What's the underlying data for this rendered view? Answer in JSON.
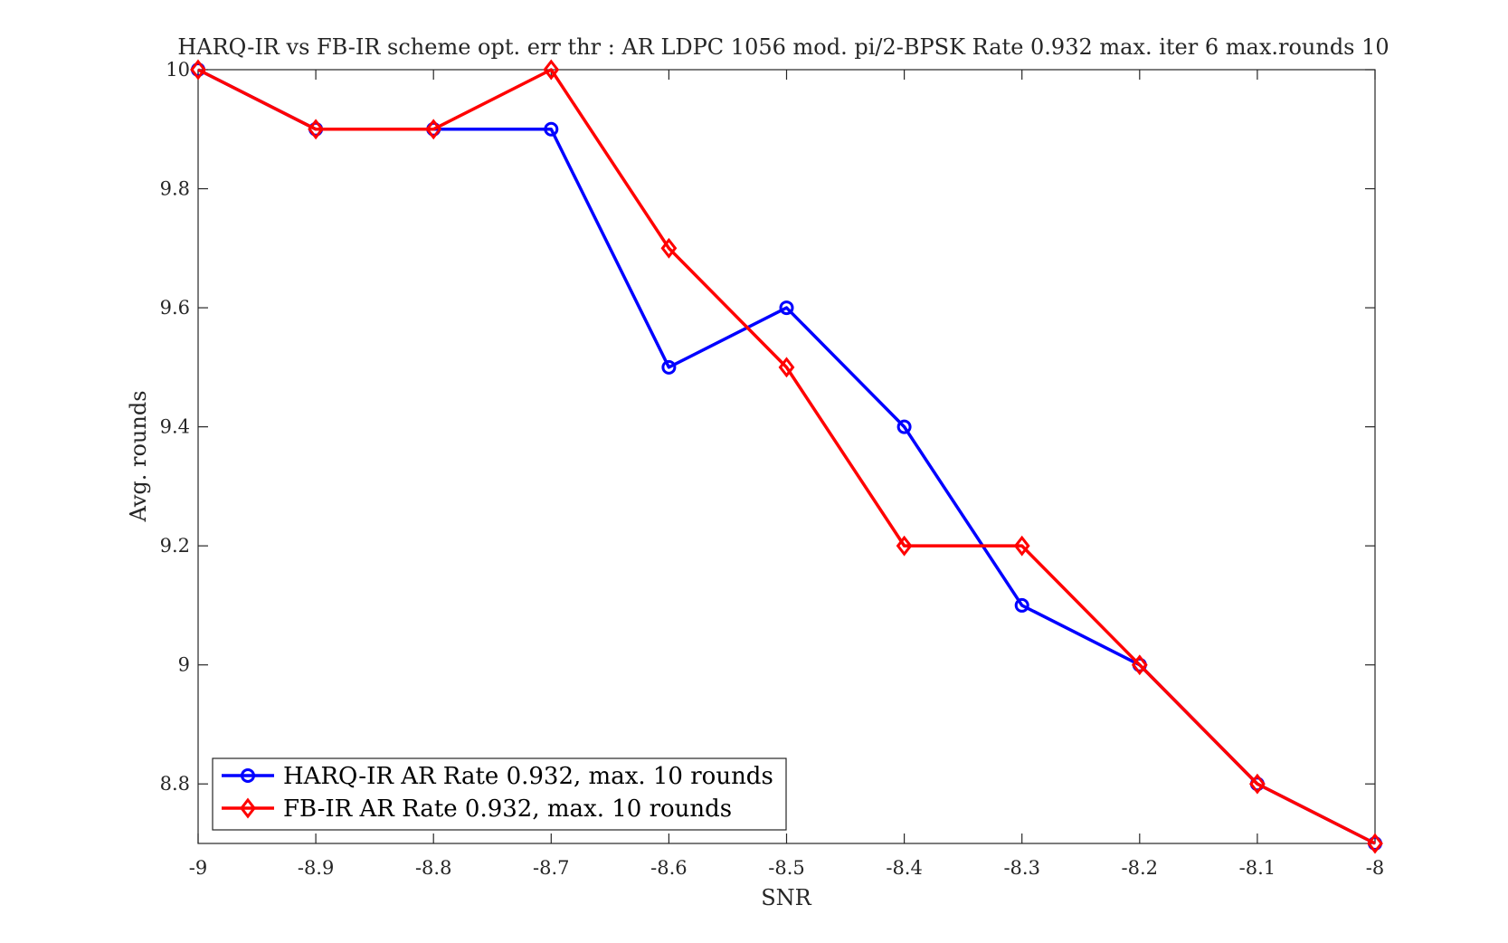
{
  "chart_data": {
    "type": "line",
    "title": "HARQ-IR vs FB-IR scheme opt. err thr : AR LDPC 1056 mod. pi/2-BPSK Rate 0.932 max. iter 6 max.rounds 10",
    "xlabel": "SNR",
    "ylabel": "Avg. rounds",
    "xlim": [
      -9,
      -8
    ],
    "ylim": [
      8.7,
      10
    ],
    "xticks": [
      -9,
      -8.9,
      -8.8,
      -8.7,
      -8.6,
      -8.5,
      -8.4,
      -8.3,
      -8.2,
      -8.1,
      -8
    ],
    "xtick_labels": [
      "-9",
      "-8.9",
      "-8.8",
      "-8.7",
      "-8.6",
      "-8.5",
      "-8.4",
      "-8.3",
      "-8.2",
      "-8.1",
      "-8"
    ],
    "yticks": [
      8.8,
      9,
      9.2,
      9.4,
      9.6,
      9.8,
      10
    ],
    "ytick_labels": [
      "8.8",
      "9",
      "9.2",
      "9.4",
      "9.6",
      "9.8",
      "10"
    ],
    "grid": false,
    "legend_position": "bottom-left",
    "x": [
      -9,
      -8.9,
      -8.8,
      -8.7,
      -8.6,
      -8.5,
      -8.4,
      -8.3,
      -8.2,
      -8.1,
      -8
    ],
    "series": [
      {
        "name": "HARQ-IR AR Rate 0.932, max. 10 rounds",
        "color": "#0000ff",
        "marker": "circle",
        "values": [
          10,
          9.9,
          9.9,
          9.9,
          9.5,
          9.6,
          9.4,
          9.1,
          9.0,
          8.8,
          8.7
        ]
      },
      {
        "name": "FB-IR AR Rate 0.932, max. 10 rounds",
        "color": "#ff0000",
        "marker": "diamond",
        "values": [
          10,
          9.9,
          9.9,
          10,
          9.7,
          9.5,
          9.2,
          9.2,
          9.0,
          8.8,
          8.7
        ]
      }
    ]
  }
}
